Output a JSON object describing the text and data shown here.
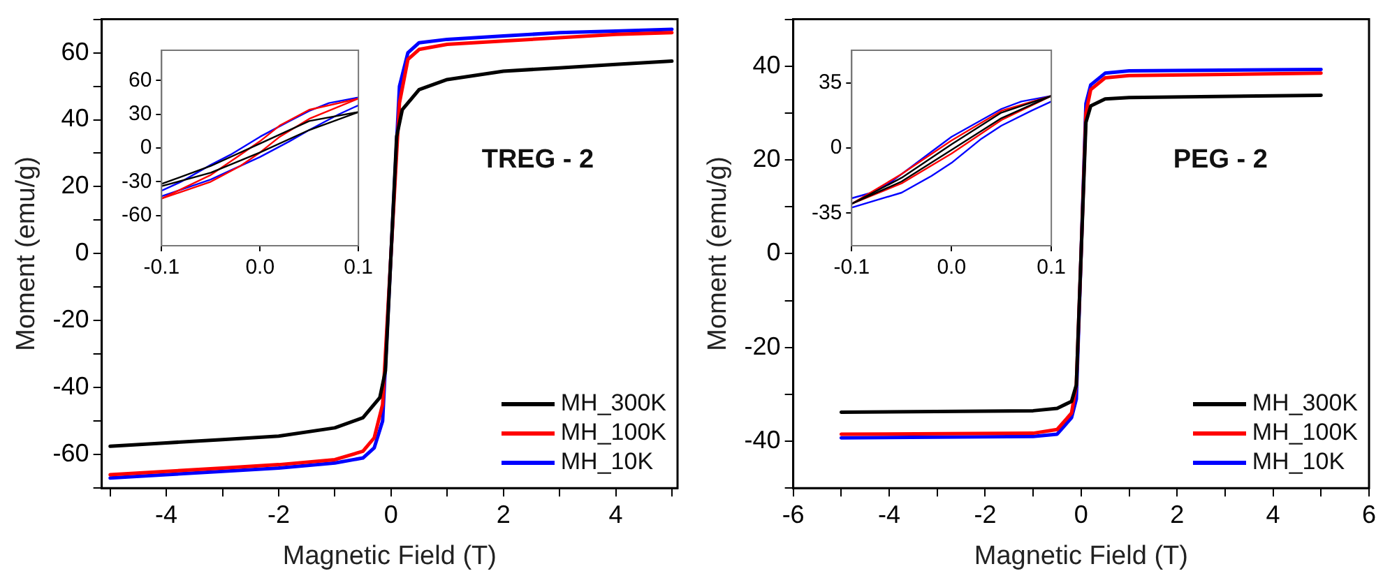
{
  "chart_data": [
    {
      "type": "line",
      "xlabel": "Magnetic Field (T)",
      "ylabel": "Moment (emu/g)",
      "annotations": [
        "TREG - 2"
      ],
      "legend": "bottom right",
      "grid": false,
      "xlim": [
        -5.15,
        5.1
      ],
      "xticks": [
        {
          "value": -5,
          "label": null
        },
        -4,
        {
          "value": -3,
          "label": null
        },
        -2,
        {
          "value": -1,
          "label": null
        },
        0,
        {
          "value": 1,
          "label": null
        },
        2,
        {
          "value": 3,
          "label": null
        },
        4,
        {
          "value": 5,
          "label": null
        }
      ],
      "ylim": [
        -70,
        70
      ],
      "yticks": [
        {
          "value": -70,
          "label": null
        },
        -60,
        {
          "value": -50,
          "label": null
        },
        -40,
        {
          "value": -30,
          "label": null
        },
        -20,
        {
          "value": -10,
          "label": null
        },
        0,
        {
          "value": 10,
          "label": null
        },
        20,
        {
          "value": 30,
          "label": null
        },
        40,
        {
          "value": 50,
          "label": null
        },
        60,
        {
          "value": 70,
          "label": null
        }
      ],
      "series": [
        {
          "name": "MH_300K",
          "color": "#000000",
          "x": [
            -5,
            -4,
            -3,
            -2,
            -1,
            -0.5,
            -0.2,
            -0.1,
            0,
            0.1,
            0.2,
            0.5,
            1,
            2,
            3,
            4,
            5
          ],
          "values": [
            -57.5,
            -56.5,
            -55.5,
            -54.5,
            -52,
            -49,
            -43,
            -35,
            0,
            35,
            43,
            49,
            52,
            54.5,
            55.5,
            56.5,
            57.5
          ]
        },
        {
          "name": "MH_100K",
          "color": "#ff0000",
          "x": [
            -5,
            -4,
            -3,
            -2,
            -1,
            -0.5,
            -0.3,
            -0.15,
            0,
            0.15,
            0.3,
            0.5,
            1,
            2,
            3,
            4,
            5
          ],
          "values": [
            -66,
            -65,
            -64,
            -63,
            -61.5,
            -59,
            -55,
            -45,
            0,
            45,
            58,
            61,
            62.5,
            63.5,
            64.5,
            65.5,
            66
          ]
        },
        {
          "name": "MH_10K",
          "color": "#0000ff",
          "x": [
            -5,
            -4,
            -3,
            -2,
            -1,
            -0.5,
            -0.3,
            -0.15,
            0,
            0.15,
            0.3,
            0.5,
            1,
            2,
            3,
            4,
            5
          ],
          "values": [
            -67,
            -66,
            -65,
            -64,
            -62.5,
            -61,
            -58,
            -50,
            0,
            50,
            60,
            63,
            64,
            65,
            66,
            66.5,
            67
          ]
        }
      ]
    },
    {
      "type": "line",
      "grid": false,
      "xlim": [
        -0.1,
        0.1
      ],
      "xticks": [
        -0.1,
        {
          "value": 0,
          "label": "0.0"
        },
        0.1
      ],
      "ylim": [
        -87,
        87
      ],
      "yticks": [
        -60,
        -30,
        0,
        30,
        60
      ],
      "series": [
        {
          "color": "#000000",
          "x": [
            -0.1,
            -0.05,
            0,
            0.05,
            0.1
          ],
          "values": [
            -34,
            -22,
            -4,
            16,
            32
          ]
        },
        {
          "color": "#000000",
          "x": [
            -0.1,
            -0.05,
            0,
            0.05,
            0.1
          ],
          "values": [
            -32,
            -16,
            4,
            24,
            32
          ]
        },
        {
          "color": "#ff0000",
          "x": [
            -0.1,
            -0.05,
            -0.02,
            0,
            0.02,
            0.05,
            0.1
          ],
          "values": [
            -45,
            -30,
            -16,
            -4,
            10,
            26,
            44
          ]
        },
        {
          "color": "#ff0000",
          "x": [
            -0.1,
            -0.05,
            -0.02,
            0,
            0.02,
            0.05,
            0.1
          ],
          "values": [
            -45,
            -24,
            -6,
            6,
            20,
            34,
            44
          ]
        },
        {
          "color": "#0000ff",
          "x": [
            -0.1,
            -0.08,
            -0.05,
            -0.03,
            0,
            0.03,
            0.05,
            0.08,
            0.1
          ],
          "values": [
            -43,
            -37,
            -28,
            -20,
            -8,
            6,
            16,
            30,
            38
          ]
        },
        {
          "color": "#0000ff",
          "x": [
            -0.1,
            -0.08,
            -0.05,
            -0.03,
            0,
            0.03,
            0.05,
            0.07,
            0.1
          ],
          "values": [
            -38,
            -30,
            -15,
            -6,
            10,
            24,
            33,
            40,
            45
          ]
        }
      ]
    },
    {
      "type": "line",
      "xlabel": "Magnetic Field (T)",
      "ylabel": "Moment (emu/g)",
      "annotations": [
        "PEG - 2"
      ],
      "legend": "bottom right",
      "grid": false,
      "xlim": [
        -6,
        6
      ],
      "xticks": [
        -6,
        {
          "value": -5,
          "label": null
        },
        -4,
        {
          "value": -3,
          "label": null
        },
        -2,
        {
          "value": -1,
          "label": null
        },
        0,
        {
          "value": 1,
          "label": null
        },
        2,
        {
          "value": 3,
          "label": null
        },
        4,
        {
          "value": 5,
          "label": null
        },
        6
      ],
      "ylim": [
        -50,
        50
      ],
      "yticks": [
        {
          "value": -50,
          "label": null
        },
        -40,
        {
          "value": -30,
          "label": null
        },
        -20,
        {
          "value": -10,
          "label": null
        },
        0,
        {
          "value": 10,
          "label": null
        },
        20,
        {
          "value": 30,
          "label": null
        },
        40,
        {
          "value": 50,
          "label": null
        }
      ],
      "series": [
        {
          "name": "MH_300K",
          "color": "#000000",
          "x": [
            -5,
            -1,
            -0.5,
            -0.2,
            -0.1,
            0,
            0.1,
            0.2,
            0.5,
            1,
            5
          ],
          "values": [
            -33.8,
            -33.5,
            -33,
            -31.5,
            -28,
            0,
            28,
            31.5,
            33,
            33.3,
            33.8
          ]
        },
        {
          "name": "MH_100K",
          "color": "#ff0000",
          "x": [
            -5,
            -1,
            -0.5,
            -0.2,
            -0.1,
            0,
            0.1,
            0.2,
            0.5,
            1,
            5
          ],
          "values": [
            -38.5,
            -38.3,
            -37.5,
            -34,
            -28,
            0,
            30,
            35,
            37.5,
            38,
            38.5
          ]
        },
        {
          "name": "MH_10K",
          "color": "#0000ff",
          "x": [
            -5,
            -1,
            -0.5,
            -0.2,
            -0.1,
            0,
            0.1,
            0.2,
            0.5,
            1,
            5
          ],
          "values": [
            -39.3,
            -39,
            -38.5,
            -35,
            -31,
            0,
            32,
            36,
            38.5,
            39,
            39.3
          ]
        }
      ]
    },
    {
      "type": "line",
      "grid": false,
      "xlim": [
        -0.1,
        0.1
      ],
      "xticks": [
        -0.1,
        {
          "value": 0,
          "label": "0.0"
        },
        0.1
      ],
      "ylim": [
        -52.5,
        52.5
      ],
      "yticks": [
        -35,
        0,
        35
      ],
      "series": [
        {
          "color": "#000000",
          "x": [
            -0.1,
            -0.05,
            0,
            0.05,
            0.1
          ],
          "values": [
            -30,
            -18,
            -1,
            16,
            28
          ]
        },
        {
          "color": "#000000",
          "x": [
            -0.1,
            -0.05,
            0,
            0.05,
            0.1
          ],
          "values": [
            -30,
            -16,
            2,
            19,
            28
          ]
        },
        {
          "color": "#ff0000",
          "x": [
            -0.1,
            -0.05,
            0,
            0.05,
            0.1
          ],
          "values": [
            -30,
            -19,
            -3,
            15,
            28
          ]
        },
        {
          "color": "#ff0000",
          "x": [
            -0.1,
            -0.05,
            0,
            0.05,
            0.1
          ],
          "values": [
            -30,
            -14,
            4,
            20,
            28
          ]
        },
        {
          "color": "#0000ff",
          "x": [
            -0.1,
            -0.05,
            -0.02,
            0,
            0.03,
            0.05,
            0.08,
            0.1
          ],
          "values": [
            -32,
            -24,
            -15,
            -8,
            5,
            12,
            20,
            25
          ]
        },
        {
          "color": "#0000ff",
          "x": [
            -0.1,
            -0.08,
            -0.06,
            -0.04,
            -0.02,
            0,
            0.02,
            0.05,
            0.07,
            0.1
          ],
          "values": [
            -27,
            -24,
            -18,
            -10,
            -2,
            6,
            12,
            21,
            25,
            28
          ]
        }
      ]
    }
  ]
}
